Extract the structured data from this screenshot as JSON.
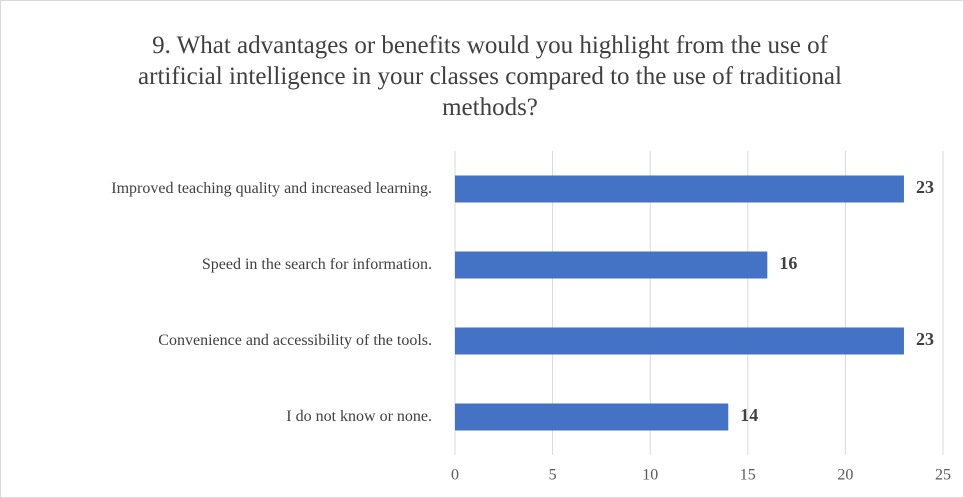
{
  "chart_data": {
    "type": "bar",
    "orientation": "horizontal",
    "title": "9. What advantages or benefits would you highlight from the use of artificial intelligence in your classes compared to the use of traditional methods?",
    "categories": [
      "Improved teaching quality and increased learning.",
      "Speed in the search for information.",
      "Convenience and accessibility of the tools.",
      "I do not know or none."
    ],
    "values": [
      23,
      16,
      23,
      14
    ],
    "color": "#4472c4",
    "xlim": [
      0,
      25
    ],
    "xticks": [
      0,
      5,
      10,
      15,
      20,
      25
    ],
    "grid": true
  }
}
